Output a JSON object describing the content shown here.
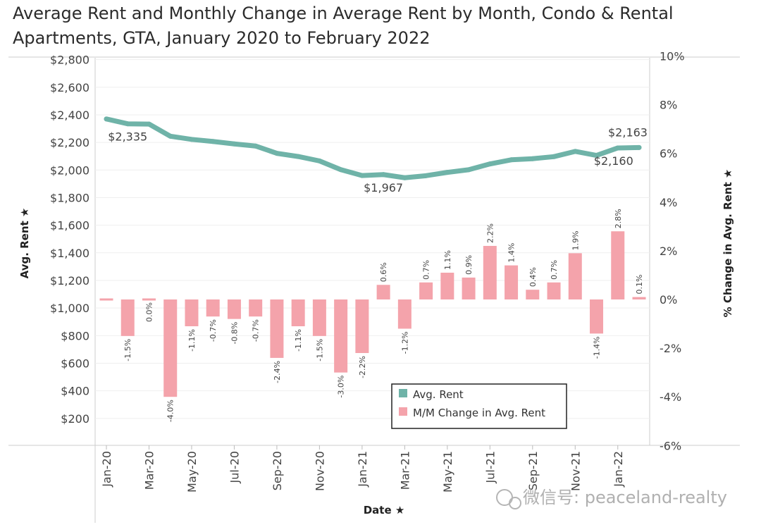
{
  "chart_data": {
    "type": "bar",
    "title": "Average Rent and Monthly Change in Average Rent by Month, Condo & Rental Apartments, GTA, January 2020 to February 2022",
    "xlabel": "Date",
    "ylabel_left": "Avg. Rent",
    "ylabel_right": "% Change in Avg. Rent",
    "ylim_left": [
      0,
      2900
    ],
    "ylim_right": [
      -6.5,
      10.5
    ],
    "left_ticks": [
      "$200",
      "$400",
      "$600",
      "$800",
      "$1,000",
      "$1,200",
      "$1,400",
      "$1,600",
      "$1,800",
      "$2,000",
      "$2,200",
      "$2,400",
      "$2,600",
      "$2,800"
    ],
    "right_ticks": [
      "-6%",
      "-4%",
      "-2%",
      "0%",
      "2%",
      "4%",
      "6%",
      "8%",
      "10%"
    ],
    "x_tick_labels": [
      "Jan-20",
      "Mar-20",
      "May-20",
      "Jul-20",
      "Sep-20",
      "Nov-20",
      "Jan-21",
      "Mar-21",
      "May-21",
      "Jul-21",
      "Sep-21",
      "Nov-21",
      "Jan-22"
    ],
    "x": [
      "Jan-20",
      "Feb-20",
      "Mar-20",
      "Apr-20",
      "May-20",
      "Jun-20",
      "Jul-20",
      "Aug-20",
      "Sep-20",
      "Oct-20",
      "Nov-20",
      "Dec-20",
      "Jan-21",
      "Feb-21",
      "Mar-21",
      "Apr-21",
      "May-21",
      "Jun-21",
      "Jul-21",
      "Aug-21",
      "Sep-21",
      "Oct-21",
      "Nov-21",
      "Dec-21",
      "Jan-22",
      "Feb-22"
    ],
    "series": [
      {
        "name": "Avg. Rent",
        "type": "line",
        "axis": "left",
        "color": "#6fb3a8",
        "values": [
          2370,
          2335,
          2333,
          2245,
          2222,
          2207,
          2189,
          2174,
          2121,
          2098,
          2066,
          2003,
          1960,
          1967,
          1944,
          1959,
          1983,
          2002,
          2044,
          2074,
          2082,
          2097,
          2135,
          2106,
          2160,
          2163
        ]
      },
      {
        "name": "M/M Change in Avg. Rent",
        "type": "bar",
        "axis": "right",
        "color": "#f4a3ab",
        "values": [
          0,
          -1.5,
          0.0,
          -4.0,
          -1.1,
          -0.7,
          -0.8,
          -0.7,
          -2.4,
          -1.1,
          -1.5,
          -3.0,
          -2.2,
          0.6,
          -1.2,
          0.7,
          1.1,
          0.9,
          2.2,
          1.4,
          0.4,
          0.7,
          1.9,
          -1.4,
          2.8,
          0.1
        ],
        "labels": [
          "",
          "-1.5%",
          "0.0%",
          "-4.0%",
          "-1.1%",
          "-0.7%",
          "-0.8%",
          "-0.7%",
          "-2.4%",
          "-1.1%",
          "-1.5%",
          "-3.0%",
          "-2.2%",
          "0.6%",
          "-1.2%",
          "0.7%",
          "1.1%",
          "0.9%",
          "2.2%",
          "1.4%",
          "0.4%",
          "0.7%",
          "1.9%",
          "-1.4%",
          "2.8%",
          "0.1%"
        ]
      }
    ],
    "annotations": [
      {
        "index": 1,
        "text": "$2,335",
        "side": "below"
      },
      {
        "index": 13,
        "text": "$1,967",
        "side": "below"
      },
      {
        "index": 24,
        "text": "$2,160",
        "side": "below"
      },
      {
        "index": 25,
        "text": "$2,163",
        "side": "above"
      }
    ],
    "legend": {
      "placement": "bottom-right",
      "items": [
        "Avg. Rent",
        "M/M Change in Avg. Rent"
      ]
    },
    "grid": true
  },
  "watermark": "微信号: peaceland-realty"
}
